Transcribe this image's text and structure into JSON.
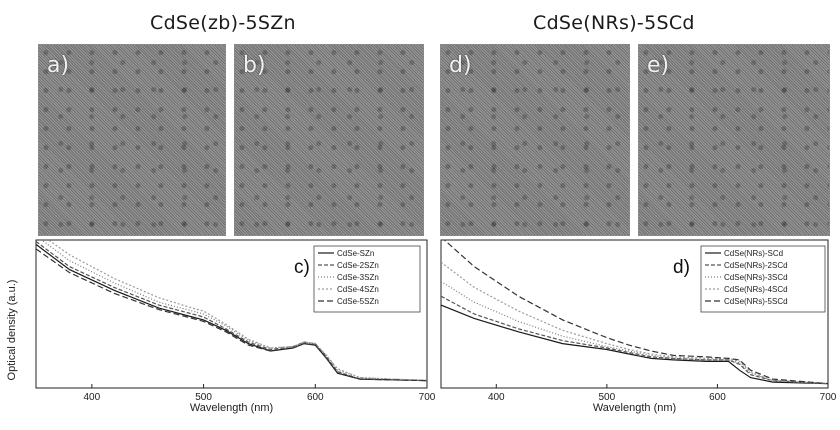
{
  "titles": {
    "left": "CdSe(zb)-5SZn",
    "right": "CdSe(NRs)-5SCd"
  },
  "tem_panels": [
    {
      "label": "a)"
    },
    {
      "label": "b)"
    },
    {
      "label": "d)"
    },
    {
      "label": "e)"
    }
  ],
  "chart_data": [
    {
      "type": "line",
      "panel_label": "c)",
      "ylabel": "Optical density (a.u.)",
      "xlabel": "Wavelength (nm)",
      "xlim": [
        350,
        700
      ],
      "xticks": [
        400,
        500,
        600,
        700
      ],
      "ylim": [
        0,
        1
      ],
      "legend_position": "top-right",
      "series": [
        {
          "name": "CdSe-SZn",
          "color": "#1a1a1a",
          "dash": "",
          "x": [
            350,
            380,
            420,
            460,
            490,
            500,
            520,
            540,
            560,
            580,
            590,
            600,
            610,
            620,
            640,
            700
          ],
          "y": [
            0.97,
            0.8,
            0.66,
            0.54,
            0.48,
            0.46,
            0.39,
            0.3,
            0.25,
            0.27,
            0.3,
            0.29,
            0.2,
            0.1,
            0.06,
            0.05
          ]
        },
        {
          "name": "CdSe-2SZn",
          "color": "#555555",
          "dash": "4,2",
          "x": [
            350,
            380,
            420,
            460,
            490,
            500,
            520,
            540,
            560,
            580,
            590,
            600,
            610,
            620,
            640,
            700
          ],
          "y": [
            0.99,
            0.82,
            0.68,
            0.56,
            0.5,
            0.48,
            0.4,
            0.31,
            0.26,
            0.28,
            0.31,
            0.3,
            0.21,
            0.11,
            0.06,
            0.05
          ]
        },
        {
          "name": "CdSe-3SZn",
          "color": "#7a7a7a",
          "dash": "1,2",
          "x": [
            350,
            380,
            420,
            460,
            490,
            500,
            520,
            540,
            560,
            580,
            590,
            600,
            610,
            620,
            640,
            700
          ],
          "y": [
            1.03,
            0.86,
            0.71,
            0.58,
            0.52,
            0.5,
            0.42,
            0.32,
            0.27,
            0.28,
            0.31,
            0.3,
            0.22,
            0.12,
            0.07,
            0.05
          ]
        },
        {
          "name": "CdSe-4SZn",
          "color": "#9a9a9a",
          "dash": "2,2",
          "x": [
            350,
            380,
            420,
            460,
            490,
            500,
            520,
            540,
            560,
            580,
            590,
            600,
            610,
            620,
            640,
            700
          ],
          "y": [
            1.06,
            0.9,
            0.74,
            0.61,
            0.54,
            0.52,
            0.43,
            0.33,
            0.27,
            0.28,
            0.31,
            0.3,
            0.22,
            0.13,
            0.07,
            0.05
          ]
        },
        {
          "name": "CdSe-5SZn",
          "color": "#333333",
          "dash": "6,3",
          "x": [
            350,
            380,
            420,
            460,
            490,
            500,
            520,
            540,
            560,
            580,
            590,
            600,
            610,
            620,
            640,
            700
          ],
          "y": [
            0.94,
            0.78,
            0.64,
            0.53,
            0.47,
            0.45,
            0.38,
            0.29,
            0.25,
            0.27,
            0.3,
            0.29,
            0.2,
            0.1,
            0.06,
            0.05
          ]
        }
      ]
    },
    {
      "type": "line",
      "panel_label": "d)",
      "ylabel": "",
      "xlabel": "Wavelength (nm)",
      "xlim": [
        350,
        700
      ],
      "xticks": [
        400,
        500,
        600,
        700
      ],
      "ylim": [
        0,
        1
      ],
      "legend_position": "top-right",
      "series": [
        {
          "name": "CdSe(NRs)-SCd",
          "color": "#1a1a1a",
          "dash": "",
          "x": [
            350,
            380,
            420,
            460,
            500,
            520,
            540,
            560,
            590,
            610,
            620,
            630,
            650,
            700
          ],
          "y": [
            0.56,
            0.47,
            0.38,
            0.3,
            0.26,
            0.23,
            0.2,
            0.19,
            0.18,
            0.18,
            0.12,
            0.07,
            0.04,
            0.03
          ]
        },
        {
          "name": "CdSe(NRs)-2SCd",
          "color": "#555555",
          "dash": "4,2",
          "x": [
            350,
            380,
            420,
            460,
            500,
            520,
            540,
            560,
            590,
            610,
            620,
            630,
            650,
            700
          ],
          "y": [
            0.62,
            0.5,
            0.4,
            0.32,
            0.27,
            0.24,
            0.21,
            0.2,
            0.19,
            0.19,
            0.16,
            0.09,
            0.05,
            0.03
          ]
        },
        {
          "name": "CdSe(NRs)-3SCd",
          "color": "#7a7a7a",
          "dash": "1,2",
          "x": [
            350,
            380,
            420,
            460,
            500,
            520,
            540,
            560,
            590,
            610,
            620,
            630,
            650,
            700
          ],
          "y": [
            0.72,
            0.58,
            0.45,
            0.35,
            0.28,
            0.25,
            0.22,
            0.2,
            0.19,
            0.19,
            0.17,
            0.1,
            0.05,
            0.03
          ]
        },
        {
          "name": "CdSe(NRs)-4SCd",
          "color": "#9a9a9a",
          "dash": "2,2",
          "x": [
            350,
            380,
            420,
            460,
            500,
            520,
            540,
            560,
            590,
            610,
            620,
            630,
            650,
            700
          ],
          "y": [
            0.85,
            0.68,
            0.52,
            0.39,
            0.3,
            0.26,
            0.23,
            0.21,
            0.2,
            0.2,
            0.18,
            0.11,
            0.05,
            0.03
          ]
        },
        {
          "name": "CdSe(NRs)-5SCd",
          "color": "#333333",
          "dash": "6,3",
          "x": [
            350,
            380,
            420,
            460,
            500,
            520,
            540,
            560,
            590,
            610,
            620,
            630,
            650,
            700
          ],
          "y": [
            1.02,
            0.82,
            0.62,
            0.46,
            0.34,
            0.29,
            0.25,
            0.22,
            0.21,
            0.2,
            0.19,
            0.12,
            0.06,
            0.03
          ]
        }
      ]
    }
  ]
}
